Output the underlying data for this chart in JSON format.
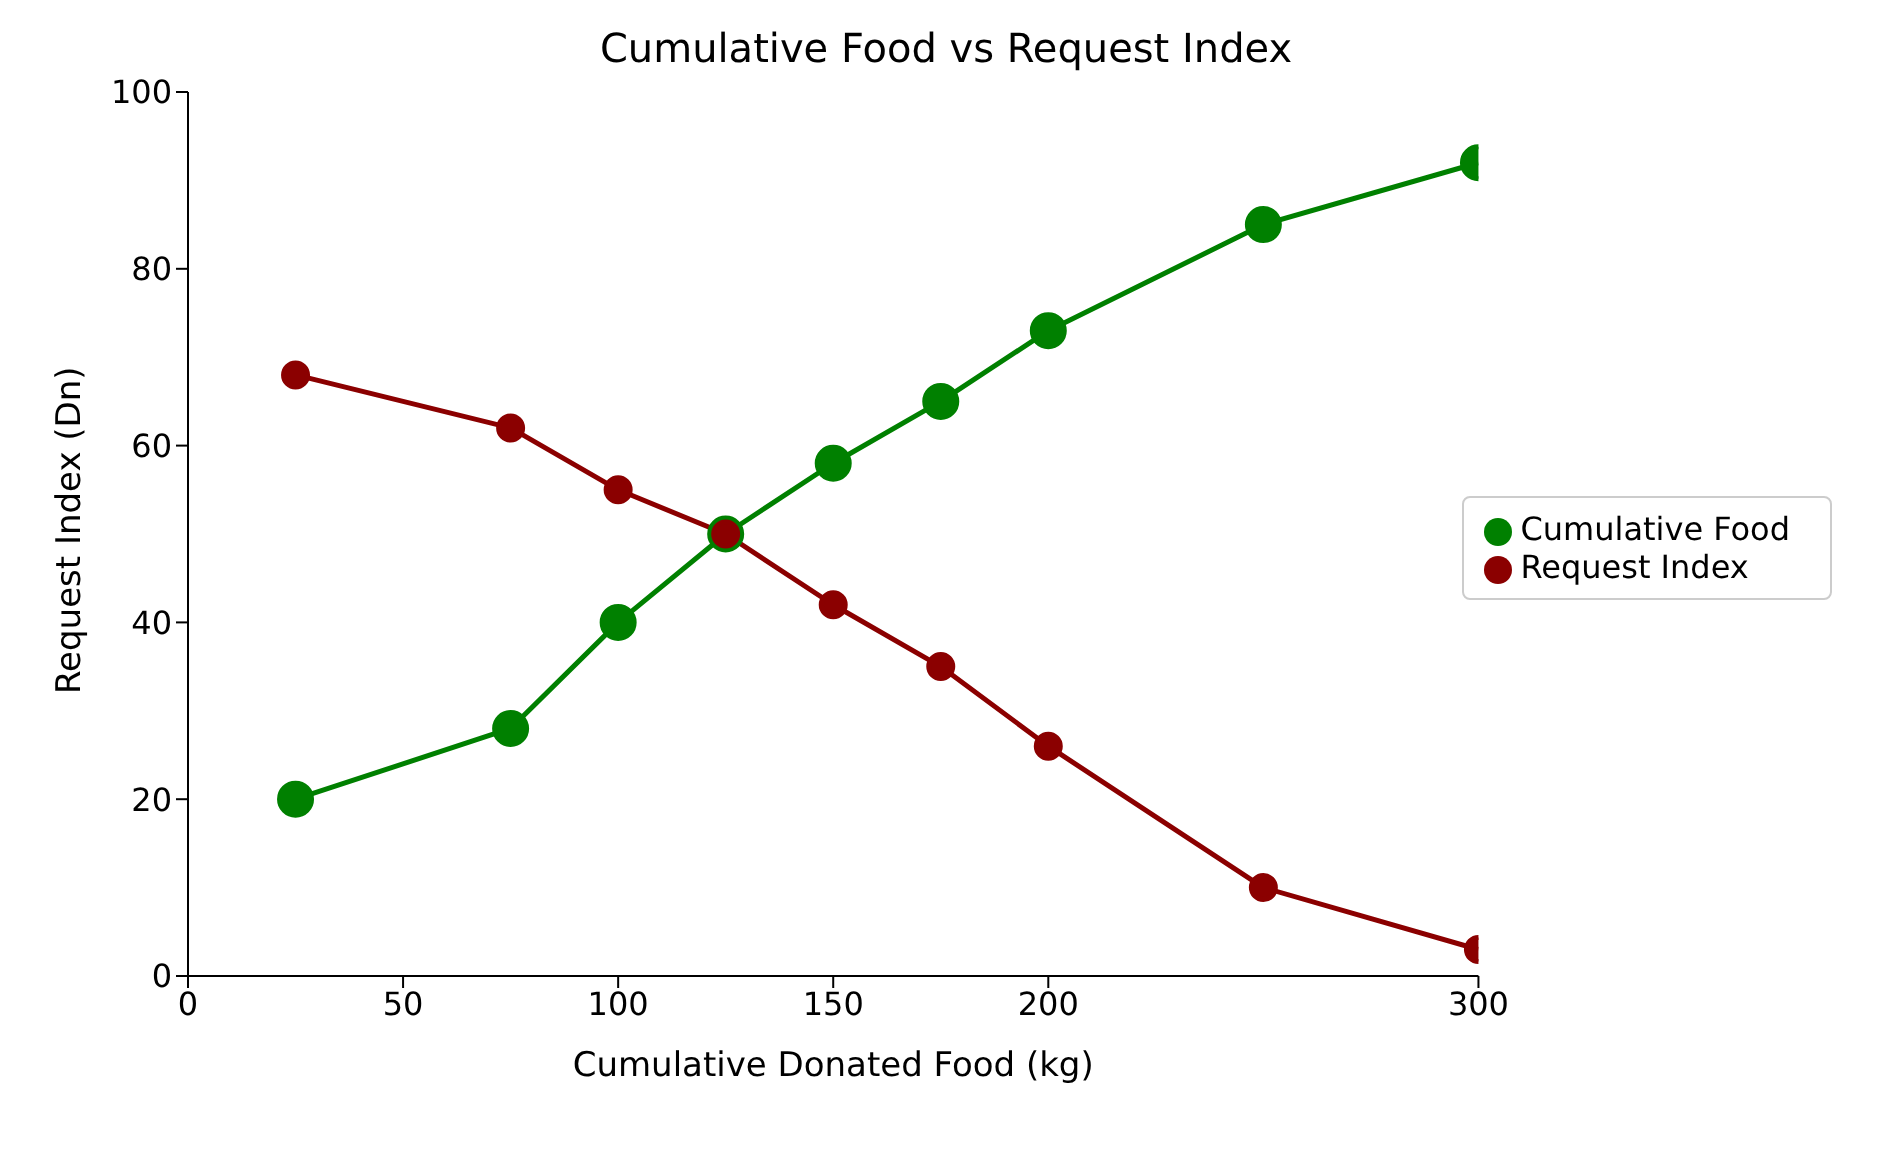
{
  "chart_data": {
    "type": "line",
    "title": "Cumulative Food vs Request Index",
    "xlabel": "Cumulative Donated Food (kg)",
    "ylabel": "Request Index (Dn)",
    "x": [
      25,
      75,
      100,
      125,
      150,
      175,
      200,
      250,
      300
    ],
    "series": [
      {
        "name": "Cumulative Food",
        "color": "#008000",
        "values": [
          20,
          28,
          40,
          50,
          58,
          65,
          73,
          85,
          92
        ]
      },
      {
        "name": "Request Index",
        "color": "#8b0000",
        "values": [
          68,
          62,
          55,
          50,
          42,
          35,
          26,
          10,
          3
        ]
      }
    ],
    "xlim": [
      0,
      300
    ],
    "xticks": [
      0,
      50,
      100,
      150,
      200,
      300
    ],
    "ylim": [
      0,
      100
    ],
    "yticks": [
      0,
      20,
      40,
      60,
      80,
      100
    ],
    "grid": false,
    "legend": "right",
    "marker": "circle",
    "line_style": "solid"
  }
}
